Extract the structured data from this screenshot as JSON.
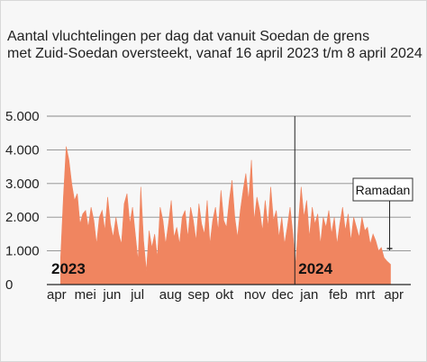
{
  "chart_data": {
    "type": "area",
    "title_lines": [
      "Aantal vluchtelingen per dag dat vanuit Soedan de grens",
      "met Zuid-Soedan oversteekt, vanaf 16 april 2023 t/m 8 april 2024"
    ],
    "xlabel": "",
    "ylabel": "",
    "ylim": [
      0,
      5000
    ],
    "y_ticks": [
      0,
      1000,
      2000,
      3000,
      4000,
      5000
    ],
    "y_tick_labels": [
      "0",
      "1.000",
      "2.000",
      "3.000",
      "4.000",
      "5.000"
    ],
    "x_range": [
      "2023-04-01",
      "2024-04-30"
    ],
    "x_ticks": [
      {
        "date": "2023-04-01",
        "label": "apr"
      },
      {
        "date": "2023-05-01",
        "label": "mei"
      },
      {
        "date": "2023-06-01",
        "label": "jun"
      },
      {
        "date": "2023-07-01",
        "label": "jul"
      },
      {
        "date": "2023-08-01",
        "label": "aug"
      },
      {
        "date": "2023-09-01",
        "label": "sep"
      },
      {
        "date": "2023-10-01",
        "label": "okt"
      },
      {
        "date": "2023-11-01",
        "label": "nov"
      },
      {
        "date": "2023-12-01",
        "label": "dec"
      },
      {
        "date": "2024-01-01",
        "label": "jan"
      },
      {
        "date": "2024-02-01",
        "label": "feb"
      },
      {
        "date": "2024-03-01",
        "label": "mrt"
      },
      {
        "date": "2024-04-01",
        "label": "apr"
      }
    ],
    "grid": true,
    "year_labels": [
      {
        "date": "2023-04-01",
        "label": "2023"
      },
      {
        "date": "2024-01-01",
        "label": "2024"
      }
    ],
    "annotation": {
      "label": "Ramadan",
      "start": "2024-03-11",
      "end": "2024-04-09"
    },
    "series": [
      {
        "color": "#f08560",
        "x": [
          "2023-04-16",
          "2023-04-19",
          "2023-04-22",
          "2023-04-25",
          "2023-04-28",
          "2023-05-01",
          "2023-05-04",
          "2023-05-07",
          "2023-05-10",
          "2023-05-13",
          "2023-05-16",
          "2023-05-19",
          "2023-05-22",
          "2023-05-25",
          "2023-05-28",
          "2023-05-31",
          "2023-06-03",
          "2023-06-06",
          "2023-06-09",
          "2023-06-12",
          "2023-06-15",
          "2023-06-18",
          "2023-06-21",
          "2023-06-24",
          "2023-06-27",
          "2023-06-30",
          "2023-07-03",
          "2023-07-06",
          "2023-07-09",
          "2023-07-12",
          "2023-07-15",
          "2023-07-18",
          "2023-07-21",
          "2023-07-24",
          "2023-07-27",
          "2023-07-30",
          "2023-08-02",
          "2023-08-05",
          "2023-08-08",
          "2023-08-11",
          "2023-08-14",
          "2023-08-17",
          "2023-08-20",
          "2023-08-23",
          "2023-08-26",
          "2023-08-29",
          "2023-09-01",
          "2023-09-04",
          "2023-09-07",
          "2023-09-10",
          "2023-09-13",
          "2023-09-16",
          "2023-09-19",
          "2023-09-22",
          "2023-09-25",
          "2023-09-28",
          "2023-10-01",
          "2023-10-04",
          "2023-10-07",
          "2023-10-10",
          "2023-10-13",
          "2023-10-16",
          "2023-10-19",
          "2023-10-22",
          "2023-10-25",
          "2023-10-28",
          "2023-10-31",
          "2023-11-03",
          "2023-11-06",
          "2023-11-09",
          "2023-11-12",
          "2023-11-15",
          "2023-11-18",
          "2023-11-21",
          "2023-11-24",
          "2023-11-27",
          "2023-11-30",
          "2023-12-03",
          "2023-12-06",
          "2023-12-09",
          "2023-12-12",
          "2023-12-15",
          "2023-12-18",
          "2023-12-21",
          "2023-12-24",
          "2023-12-27",
          "2023-12-30",
          "2024-01-02",
          "2024-01-05",
          "2024-01-08",
          "2024-01-11",
          "2024-01-14",
          "2024-01-17",
          "2024-01-20",
          "2024-01-23",
          "2024-01-26",
          "2024-01-29",
          "2024-02-01",
          "2024-02-04",
          "2024-02-07",
          "2024-02-10",
          "2024-02-13",
          "2024-02-16",
          "2024-02-19",
          "2024-02-22",
          "2024-02-25",
          "2024-02-28",
          "2024-03-02",
          "2024-03-05",
          "2024-03-08",
          "2024-03-11",
          "2024-03-14",
          "2024-03-17",
          "2024-03-20",
          "2024-03-23",
          "2024-03-26",
          "2024-03-29",
          "2024-04-01",
          "2024-04-04",
          "2024-04-08"
        ],
        "values": [
          800,
          2600,
          4100,
          3700,
          3000,
          2500,
          2700,
          1800,
          2100,
          2200,
          1700,
          2300,
          1900,
          1200,
          2000,
          2200,
          1600,
          2600,
          1800,
          1400,
          2000,
          1500,
          1200,
          2400,
          2700,
          1800,
          2300,
          1500,
          700,
          2900,
          1300,
          400,
          1600,
          1100,
          1500,
          800,
          2300,
          1900,
          1200,
          1800,
          2500,
          1400,
          1700,
          1200,
          2000,
          2200,
          1400,
          2300,
          1900,
          1300,
          2400,
          1800,
          1500,
          2500,
          1200,
          1900,
          2300,
          1600,
          2800,
          1900,
          1700,
          2500,
          3100,
          2000,
          1400,
          2200,
          2800,
          3300,
          2500,
          3700,
          1900,
          2600,
          2200,
          1600,
          2500,
          1700,
          2900,
          1900,
          2200,
          1400,
          2000,
          1200,
          1700,
          2300,
          1500,
          600,
          1800,
          2900,
          2000,
          2500,
          1400,
          2300,
          1800,
          2100,
          1200,
          2000,
          1700,
          2200,
          1500,
          2000,
          1200,
          1800,
          2300,
          1600,
          2100,
          1300,
          2000,
          1700,
          1400,
          2000,
          1600,
          1700,
          1200,
          1500,
          1300,
          1000,
          1100,
          800,
          700,
          600
        ]
      }
    ]
  }
}
